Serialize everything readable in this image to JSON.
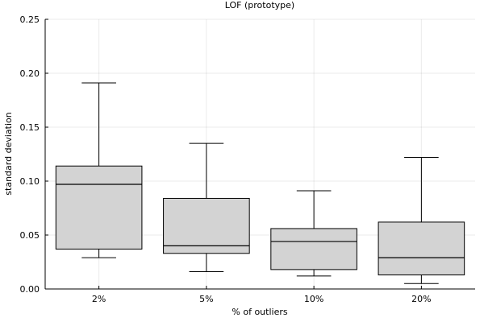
{
  "chart_data": {
    "type": "box",
    "title": "LOF (prototype)",
    "xlabel": "% of outliers",
    "ylabel": "standard deviation",
    "categories": [
      "2%",
      "5%",
      "10%",
      "20%"
    ],
    "ylim": [
      0,
      0.25
    ],
    "yticks": [
      "0.00",
      "0.05",
      "0.10",
      "0.15",
      "0.20",
      "0.25"
    ],
    "grid": true,
    "legend": false,
    "box_color": "#d3d3d3",
    "boxes": [
      {
        "category": "2%",
        "whisker_low": 0.029,
        "q1": 0.037,
        "median": 0.097,
        "q3": 0.114,
        "whisker_high": 0.191
      },
      {
        "category": "5%",
        "whisker_low": 0.016,
        "q1": 0.033,
        "median": 0.04,
        "q3": 0.084,
        "whisker_high": 0.135
      },
      {
        "category": "10%",
        "whisker_low": 0.012,
        "q1": 0.018,
        "median": 0.044,
        "q3": 0.056,
        "whisker_high": 0.091
      },
      {
        "category": "20%",
        "whisker_low": 0.005,
        "q1": 0.013,
        "median": 0.029,
        "q3": 0.062,
        "whisker_high": 0.122
      }
    ]
  }
}
